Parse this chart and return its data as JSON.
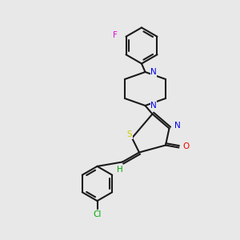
{
  "background_color": "#e8e8e8",
  "bond_color": "#1a1a1a",
  "atom_colors": {
    "N": "#0000ee",
    "O": "#ee0000",
    "S": "#cccc00",
    "F": "#ee00ee",
    "Cl": "#00aa00",
    "H": "#00aa00",
    "C": "#1a1a1a"
  },
  "bg_rgb": [
    0.91,
    0.91,
    0.91
  ]
}
